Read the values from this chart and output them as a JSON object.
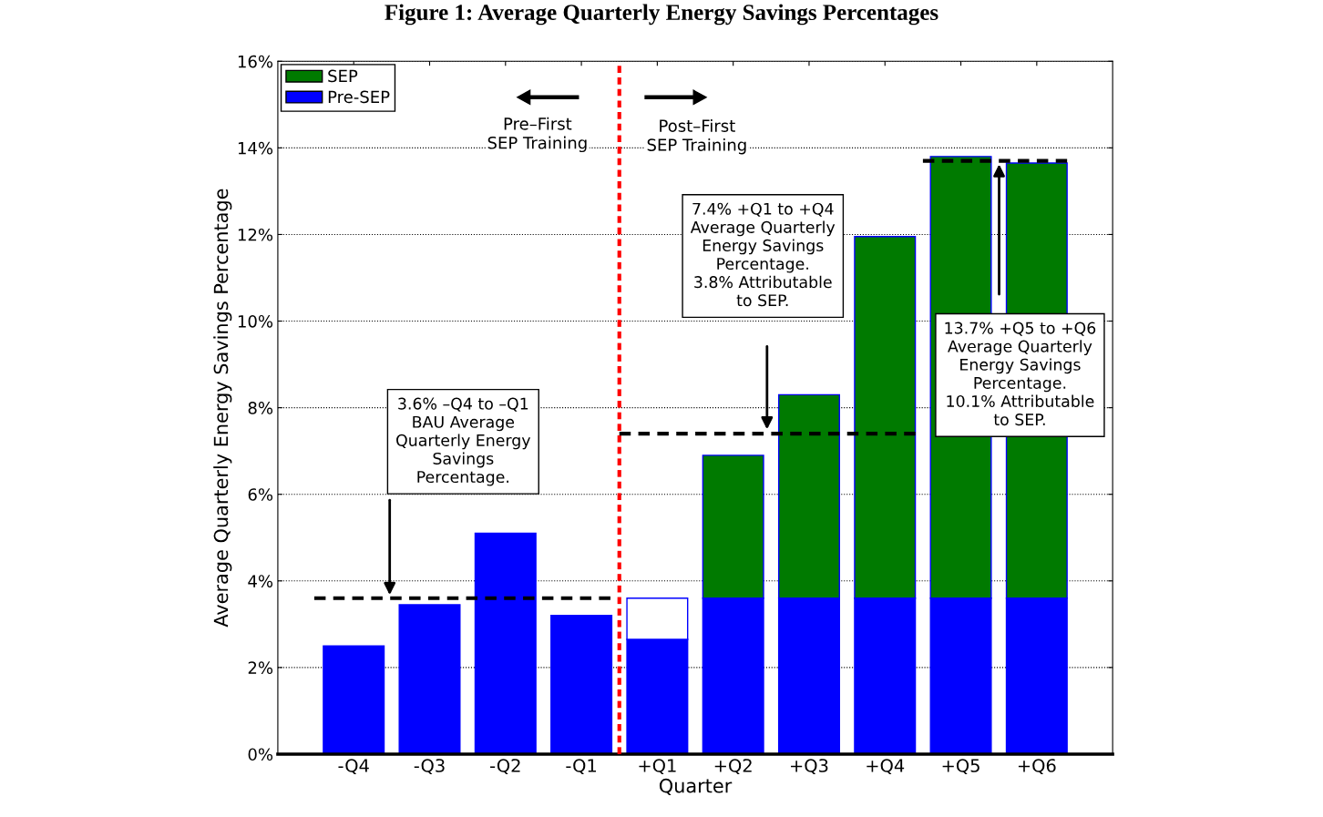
{
  "chart_data": {
    "type": "bar",
    "title": "Figure 1: Average Quarterly Energy Savings Percentages",
    "xlabel": "Quarter",
    "ylabel": "Average Quarterly Energy Savings Percentage",
    "categories": [
      "-Q4",
      "-Q3",
      "-Q2",
      "-Q1",
      "+Q1",
      "+Q2",
      "+Q3",
      "+Q4",
      "+Q5",
      "+Q6"
    ],
    "stacked": true,
    "series": [
      {
        "name": "Pre-SEP",
        "color": "#0000ff",
        "values": [
          2.5,
          3.45,
          5.1,
          3.2,
          2.65,
          3.6,
          3.6,
          3.6,
          3.6,
          3.6
        ]
      },
      {
        "color": "#ffffff",
        "values": [
          null,
          null,
          null,
          null,
          0.95,
          null,
          null,
          null,
          null,
          null
        ]
      },
      {
        "name": "SEP",
        "color": "#007a00",
        "values": [
          null,
          null,
          null,
          null,
          null,
          3.3,
          4.7,
          8.35,
          10.2,
          10.05
        ]
      }
    ],
    "ylim": [
      0,
      16
    ],
    "yticks": [
      {
        "value": 0,
        "label": "0%"
      },
      {
        "value": 2,
        "label": "2%"
      },
      {
        "value": 4,
        "label": "4%"
      },
      {
        "value": 6,
        "label": "6%"
      },
      {
        "value": 8,
        "label": "8%"
      },
      {
        "value": 10,
        "label": "10%"
      },
      {
        "value": 12,
        "label": "12%"
      },
      {
        "value": 14,
        "label": "14%"
      },
      {
        "value": 16,
        "label": "16%"
      }
    ],
    "ref_lines": [
      {
        "axis": "y",
        "value": 3.6,
        "color": "#000000",
        "line_style": "dashed"
      },
      {
        "axis": "y",
        "value": 7.4,
        "color": "#000000",
        "line_style": "dashed"
      },
      {
        "axis": "y",
        "value": 13.7,
        "color": "#000000",
        "line_style": "dashed"
      }
    ],
    "annotations": [
      "3.6% –Q4 to –Q1\nBAU Average\nQuarterly Energy\nSavings\nPercentage.",
      "7.4% +Q1 to +Q4\nAverage Quarterly\nEnergy Savings\nPercentage.\n3.8% Attributable\nto SEP.",
      "13.7% +Q5 to +Q6\nAverage Quarterly\nEnergy Savings\nPercentage.\n10.1% Attributable\nto SEP.",
      "Pre–First\nSEP Training",
      "Post–First\nSEP Training"
    ],
    "grid": "y",
    "legend": "top left"
  }
}
